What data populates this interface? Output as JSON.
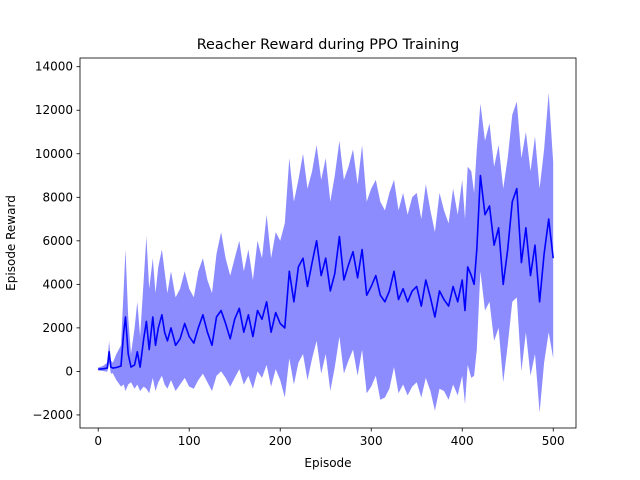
{
  "chart_data": {
    "type": "line",
    "title": "Reacher Reward during PPO Training",
    "xlabel": "Episode",
    "ylabel": "Episode Reward",
    "xlim": [
      -20,
      525
    ],
    "ylim": [
      -2600,
      14400
    ],
    "xticks": [
      0,
      100,
      200,
      300,
      400,
      500
    ],
    "xtick_labels": [
      "0",
      "100",
      "200",
      "300",
      "400",
      "500"
    ],
    "yticks": [
      -2000,
      0,
      2000,
      4000,
      6000,
      8000,
      10000,
      12000,
      14000
    ],
    "ytick_labels": [
      "−2000",
      "0",
      "2000",
      "4000",
      "6000",
      "8000",
      "10000",
      "12000",
      "14000"
    ],
    "grid": false,
    "legend": "none",
    "colors": {
      "line": "#0000ff",
      "band": "#8080ff"
    },
    "series": [
      {
        "x": [
          0,
          5,
          10,
          12,
          14,
          16,
          20,
          25,
          28,
          30,
          33,
          36,
          40,
          43,
          46,
          50,
          53,
          56,
          60,
          63,
          66,
          70,
          73,
          76,
          80,
          85,
          90,
          95,
          100,
          105,
          110,
          115,
          120,
          125,
          130,
          135,
          140,
          145,
          150,
          155,
          160,
          165,
          170,
          175,
          180,
          185,
          190,
          195,
          200,
          205,
          210,
          215,
          220,
          225,
          230,
          235,
          240,
          245,
          250,
          255,
          260,
          265,
          270,
          275,
          280,
          285,
          290,
          295,
          300,
          305,
          310,
          315,
          320,
          325,
          330,
          335,
          340,
          345,
          350,
          355,
          360,
          365,
          370,
          375,
          380,
          385,
          390,
          395,
          400,
          403,
          406,
          410,
          413,
          416,
          420,
          425,
          430,
          435,
          440,
          445,
          450,
          455,
          460,
          465,
          470,
          475,
          480,
          485,
          490,
          495,
          500
        ],
        "y": [
          100,
          120,
          150,
          900,
          200,
          150,
          180,
          250,
          1800,
          2500,
          800,
          200,
          300,
          900,
          200,
          1500,
          2300,
          1000,
          2500,
          1200,
          2000,
          2600,
          1800,
          1400,
          2000,
          1200,
          1500,
          2200,
          1600,
          1300,
          2000,
          2600,
          1800,
          1200,
          2500,
          2800,
          2200,
          1500,
          2400,
          2900,
          1800,
          2600,
          1600,
          2800,
          2400,
          3200,
          1800,
          2700,
          2200,
          2000,
          4600,
          3200,
          4800,
          5200,
          3900,
          5000,
          6000,
          4400,
          5200,
          3700,
          4500,
          6200,
          4200,
          4900,
          5500,
          4300,
          5600,
          3500,
          3900,
          4400,
          3500,
          3200,
          3700,
          4600,
          3300,
          3800,
          3200,
          3700,
          3900,
          3000,
          4200,
          3400,
          2500,
          3700,
          3300,
          3000,
          3900,
          3200,
          4200,
          2800,
          4800,
          4400,
          4000,
          5600,
          9000,
          7200,
          7600,
          5800,
          6600,
          4000,
          5600,
          7800,
          8400,
          5000,
          6600,
          4400,
          5800,
          3200,
          5400,
          7000,
          5200
        ]
      }
    ],
    "band": {
      "x": [
        0,
        5,
        10,
        12,
        14,
        16,
        20,
        25,
        28,
        30,
        33,
        36,
        40,
        43,
        46,
        50,
        53,
        56,
        60,
        63,
        66,
        70,
        73,
        76,
        80,
        85,
        90,
        95,
        100,
        105,
        110,
        115,
        120,
        125,
        130,
        135,
        140,
        145,
        150,
        155,
        160,
        165,
        170,
        175,
        180,
        185,
        190,
        195,
        200,
        205,
        210,
        215,
        220,
        225,
        230,
        235,
        240,
        245,
        250,
        255,
        260,
        265,
        270,
        275,
        280,
        285,
        290,
        295,
        300,
        305,
        310,
        315,
        320,
        325,
        330,
        335,
        340,
        345,
        350,
        355,
        360,
        365,
        370,
        375,
        380,
        385,
        390,
        395,
        400,
        403,
        406,
        410,
        413,
        416,
        420,
        425,
        430,
        435,
        440,
        445,
        450,
        455,
        460,
        465,
        470,
        475,
        480,
        485,
        490,
        495,
        500
      ],
      "upper": [
        180,
        250,
        400,
        1400,
        500,
        400,
        800,
        1200,
        3800,
        5600,
        2500,
        800,
        2000,
        3200,
        1600,
        4200,
        6200,
        3800,
        5200,
        3600,
        4800,
        5600,
        4600,
        3600,
        4600,
        3400,
        3800,
        4600,
        3800,
        3400,
        4600,
        5200,
        4200,
        3600,
        5400,
        6400,
        5200,
        4400,
        5200,
        6000,
        4600,
        5600,
        4200,
        6000,
        5200,
        7200,
        5200,
        6400,
        6000,
        6800,
        9800,
        7800,
        8800,
        10000,
        8400,
        9200,
        10400,
        8800,
        9800,
        7800,
        9000,
        10600,
        8800,
        9400,
        10200,
        8600,
        10400,
        7800,
        8400,
        8800,
        7800,
        7400,
        8200,
        8800,
        7400,
        8200,
        7200,
        8000,
        8200,
        7000,
        8600,
        7400,
        6400,
        8200,
        7400,
        6800,
        8400,
        7200,
        8800,
        7000,
        9400,
        9200,
        8200,
        10200,
        12300,
        10600,
        11400,
        9400,
        10400,
        8400,
        9800,
        11800,
        12400,
        9800,
        11000,
        9200,
        10800,
        8400,
        10200,
        12800,
        9600
      ],
      "lower": [
        40,
        20,
        -20,
        400,
        -100,
        -80,
        -400,
        -700,
        -600,
        -900,
        -600,
        -500,
        -800,
        -600,
        -900,
        -700,
        -800,
        -1000,
        -300,
        -900,
        -500,
        -200,
        -600,
        -800,
        -400,
        -900,
        -600,
        -300,
        -700,
        -800,
        -400,
        -100,
        -500,
        -900,
        -200,
        0,
        -300,
        -700,
        -300,
        100,
        -600,
        -200,
        -800,
        0,
        -300,
        300,
        -700,
        100,
        -400,
        -1200,
        600,
        -600,
        400,
        800,
        -400,
        600,
        1400,
        -100,
        800,
        -900,
        200,
        1600,
        -100,
        500,
        1000,
        -200,
        1000,
        -1000,
        -700,
        -200,
        -1300,
        -1200,
        -800,
        200,
        -1000,
        -600,
        -1100,
        -700,
        -500,
        -1200,
        -300,
        -900,
        -1800,
        -800,
        -900,
        -1300,
        -600,
        -1100,
        -200,
        -1500,
        300,
        -300,
        -200,
        1000,
        4600,
        2800,
        3200,
        1400,
        2000,
        -500,
        1200,
        3200,
        3400,
        0,
        1800,
        -200,
        800,
        -1900,
        400,
        1800,
        600
      ]
    }
  }
}
